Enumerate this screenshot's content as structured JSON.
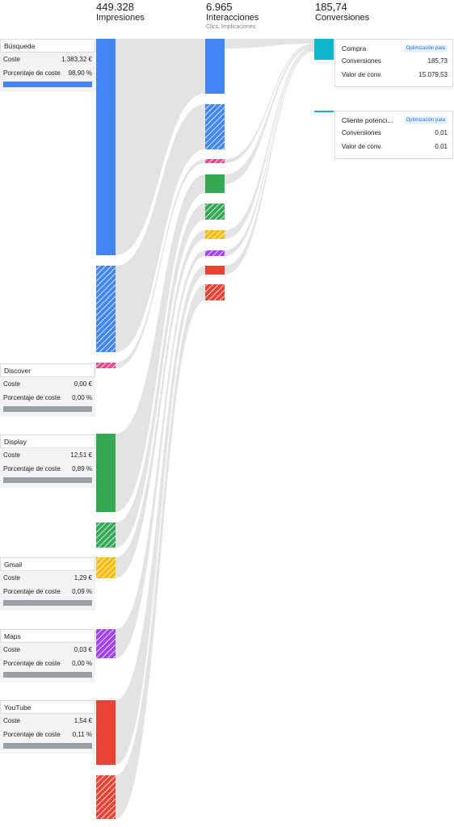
{
  "headers": {
    "impressions": {
      "value": "449.328",
      "label": "Impresiones"
    },
    "interactions": {
      "value": "6.965",
      "label": "Interacciones",
      "sub": "Clics, Implicaciones"
    },
    "conversions": {
      "value": "185,74",
      "label": "Conversiones"
    }
  },
  "networks": [
    {
      "name": "Búsqueda",
      "cost_label": "Coste",
      "cost": "1.383,32 €",
      "pct_label": "Porcentaje de coste",
      "pct": "98,90 %",
      "pct_value": 98.9,
      "color": "#4285f4"
    },
    {
      "name": "Discover",
      "cost_label": "Coste",
      "cost": "0,00 €",
      "pct_label": "Porcentaje de coste",
      "pct": "0,00 %",
      "pct_value": 0.0,
      "color": "#e84a8f"
    },
    {
      "name": "Display",
      "cost_label": "Coste",
      "cost": "12,51 €",
      "pct_label": "Porcentaje de coste",
      "pct": "0,89 %",
      "pct_value": 0.89,
      "color": "#34a853"
    },
    {
      "name": "Gmail",
      "cost_label": "Coste",
      "cost": "1,29 €",
      "pct_label": "Porcentaje de coste",
      "pct": "0,09 %",
      "pct_value": 0.09,
      "color": "#fbbc04"
    },
    {
      "name": "Maps",
      "cost_label": "Coste",
      "cost": "0,03 €",
      "pct_label": "Porcentaje de coste",
      "pct": "0,00 %",
      "pct_value": 0.0,
      "color": "#a142f4"
    },
    {
      "name": "YouTube",
      "cost_label": "Coste",
      "cost": "1,54 €",
      "pct_label": "Porcentaje de coste",
      "pct": "0,11 %",
      "pct_value": 0.11,
      "color": "#ea4335"
    }
  ],
  "conversion_actions": [
    {
      "name": "Compra",
      "badge": "Optimización para",
      "conv_label": "Conversiones",
      "conv": "185,73",
      "value_label": "Valor de conv.",
      "value": "15.079,53"
    },
    {
      "name": "Cliente potenci...",
      "badge": "Optimización para",
      "conv_label": "Conversiones",
      "conv": "0,01",
      "value_label": "Valor de conv.",
      "value": "0,01"
    }
  ],
  "colors": {
    "flow": "#dedede",
    "conversion": "#12b5cb",
    "hatch_stroke": "#ffffff"
  },
  "chart_data": {
    "type": "sankey",
    "stages": [
      "Impresiones",
      "Interacciones",
      "Conversiones"
    ],
    "stage_totals": [
      449328,
      6965,
      185.74
    ],
    "series": [
      {
        "name": "Búsqueda",
        "legend": [
          "Coste",
          "Porcentaje de coste"
        ],
        "cost": 1383.32,
        "cost_pct": 98.9
      },
      {
        "name": "Discover",
        "cost": 0.0,
        "cost_pct": 0.0
      },
      {
        "name": "Display",
        "cost": 12.51,
        "cost_pct": 0.89
      },
      {
        "name": "Gmail",
        "cost": 1.29,
        "cost_pct": 0.09
      },
      {
        "name": "Maps",
        "cost": 0.03,
        "cost_pct": 0.0
      },
      {
        "name": "YouTube",
        "cost": 1.54,
        "cost_pct": 0.11
      }
    ],
    "conversion_actions": [
      {
        "name": "Compra",
        "conversions": 185.73,
        "value": 15079.53
      },
      {
        "name": "Cliente potenci...",
        "conversions": 0.01,
        "value": 0.01
      }
    ]
  }
}
